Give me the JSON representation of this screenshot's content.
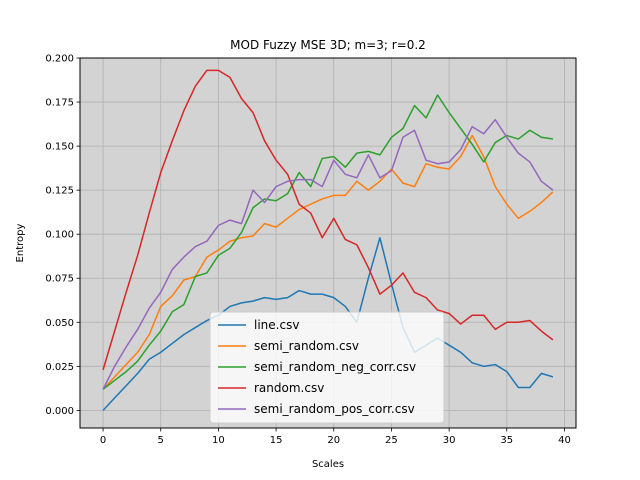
{
  "chart_data": {
    "type": "line",
    "title": "MOD Fuzzy MSE 3D; m=3; r=0.2",
    "xlabel": "Scales",
    "ylabel": "Entropy",
    "xlim": [
      -2,
      41
    ],
    "ylim": [
      -0.01,
      0.2
    ],
    "xticks": [
      0,
      5,
      10,
      15,
      20,
      25,
      30,
      35,
      40
    ],
    "yticks": [
      0.0,
      0.025,
      0.05,
      0.075,
      0.1,
      0.125,
      0.15,
      0.175,
      0.2
    ],
    "xtick_labels": [
      "0",
      "5",
      "10",
      "15",
      "20",
      "25",
      "30",
      "35",
      "40"
    ],
    "ytick_labels": [
      "0.000",
      "0.025",
      "0.050",
      "0.075",
      "0.100",
      "0.125",
      "0.150",
      "0.175",
      "0.200"
    ],
    "grid": true,
    "background": "#d3d3d3",
    "legend_position": "lower center",
    "series": [
      {
        "name": "line.csv",
        "color": "#1f77b4",
        "values": [
          0.0,
          0.007,
          0.014,
          0.021,
          0.029,
          0.033,
          0.038,
          0.043,
          0.047,
          0.051,
          0.054,
          0.059,
          0.061,
          0.062,
          0.064,
          0.063,
          0.064,
          0.068,
          0.066,
          0.066,
          0.064,
          0.059,
          0.05,
          0.075,
          0.098,
          0.072,
          0.047,
          0.033,
          0.037,
          0.041,
          0.037,
          0.033,
          0.027,
          0.025,
          0.026,
          0.022,
          0.013,
          0.013,
          0.021,
          0.019
        ]
      },
      {
        "name": "semi_random.csv",
        "color": "#ff7f0e",
        "values": [
          0.012,
          0.019,
          0.026,
          0.033,
          0.043,
          0.059,
          0.065,
          0.074,
          0.076,
          0.087,
          0.091,
          0.096,
          0.098,
          0.099,
          0.106,
          0.104,
          0.109,
          0.114,
          0.117,
          0.12,
          0.122,
          0.122,
          0.13,
          0.125,
          0.13,
          0.137,
          0.129,
          0.127,
          0.14,
          0.138,
          0.137,
          0.144,
          0.156,
          0.144,
          0.127,
          0.117,
          0.109,
          0.113,
          0.118,
          0.124
        ]
      },
      {
        "name": "semi_random_neg_corr.csv",
        "color": "#2ca02c",
        "values": [
          0.012,
          0.017,
          0.022,
          0.028,
          0.037,
          0.045,
          0.056,
          0.06,
          0.076,
          0.078,
          0.088,
          0.092,
          0.101,
          0.115,
          0.12,
          0.119,
          0.123,
          0.135,
          0.127,
          0.143,
          0.144,
          0.138,
          0.146,
          0.147,
          0.145,
          0.155,
          0.16,
          0.173,
          0.166,
          0.179,
          0.169,
          0.16,
          0.151,
          0.141,
          0.152,
          0.156,
          0.154,
          0.159,
          0.155,
          0.154
        ]
      },
      {
        "name": "random.csv",
        "color": "#d62728",
        "values": [
          0.023,
          0.045,
          0.067,
          0.088,
          0.112,
          0.135,
          0.153,
          0.17,
          0.184,
          0.193,
          0.193,
          0.189,
          0.177,
          0.169,
          0.153,
          0.142,
          0.134,
          0.117,
          0.112,
          0.098,
          0.109,
          0.097,
          0.094,
          0.081,
          0.066,
          0.071,
          0.078,
          0.067,
          0.064,
          0.057,
          0.055,
          0.049,
          0.054,
          0.054,
          0.046,
          0.05,
          0.05,
          0.051,
          0.045,
          0.04
        ]
      },
      {
        "name": "semi_random_pos_corr.csv",
        "color": "#9467bd",
        "values": [
          0.012,
          0.025,
          0.036,
          0.046,
          0.058,
          0.067,
          0.08,
          0.087,
          0.093,
          0.096,
          0.105,
          0.108,
          0.106,
          0.125,
          0.118,
          0.127,
          0.13,
          0.131,
          0.131,
          0.127,
          0.142,
          0.134,
          0.132,
          0.145,
          0.132,
          0.136,
          0.155,
          0.159,
          0.142,
          0.14,
          0.141,
          0.148,
          0.161,
          0.157,
          0.165,
          0.155,
          0.146,
          0.141,
          0.13,
          0.125
        ]
      }
    ]
  }
}
